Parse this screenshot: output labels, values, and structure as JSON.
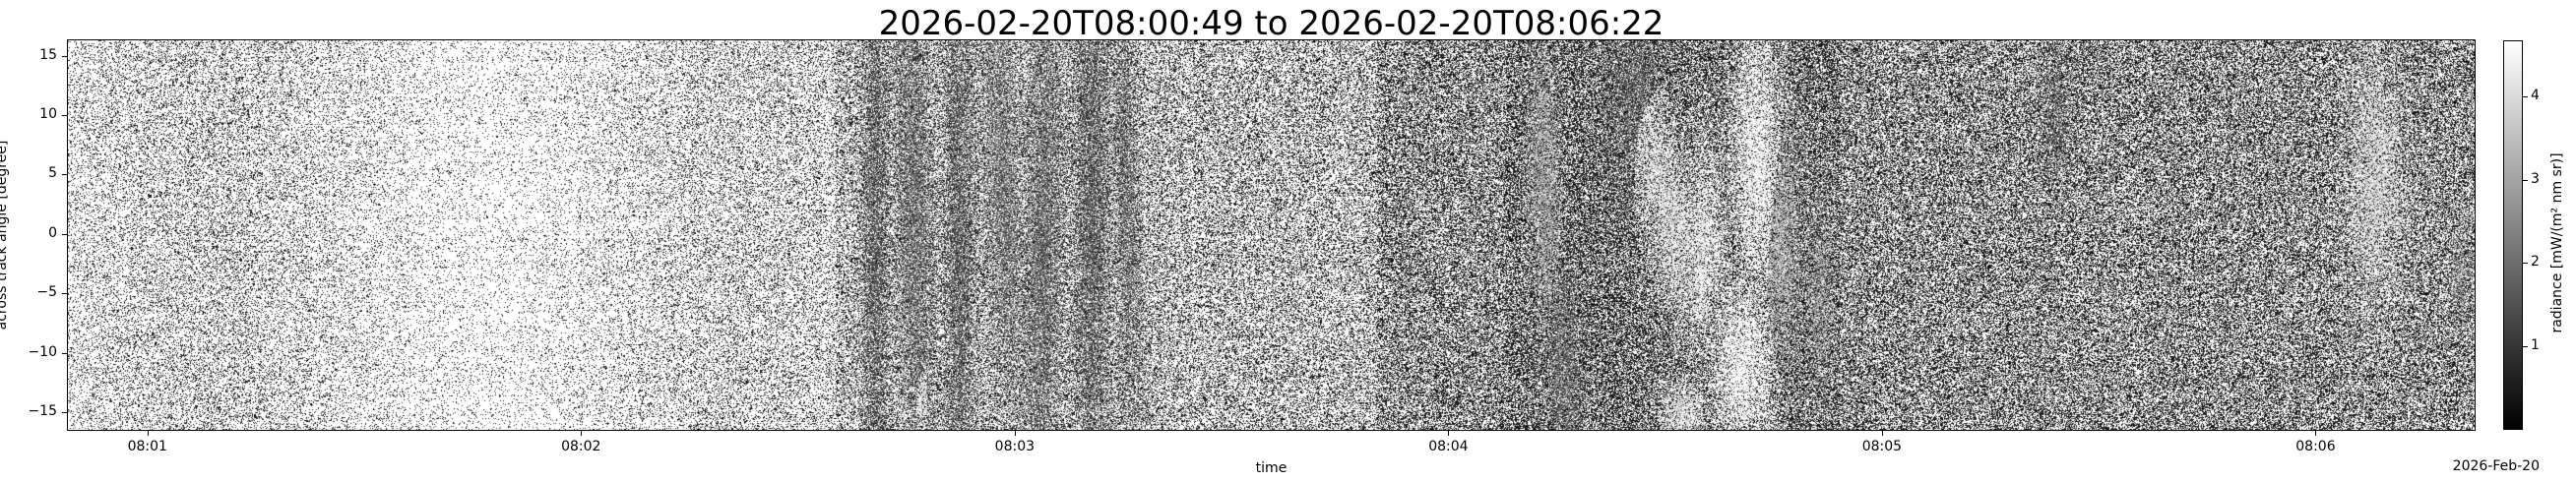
{
  "chart_data": {
    "type": "heatmap",
    "title": "2026-02-20T08:00:49 to 2026-02-20T08:06:22",
    "xlabel": "time",
    "ylabel": "across track angle [degree]",
    "x_range": [
      "08:00:49",
      "08:06:22"
    ],
    "x_ticks": [
      "08:01",
      "08:02",
      "08:03",
      "08:04",
      "08:05",
      "08:06"
    ],
    "x_offset_label": "2026-Feb-20",
    "ylim": [
      -16.5,
      16.3
    ],
    "y_ticks": [
      15,
      10,
      5,
      0,
      -5,
      -10,
      -15
    ],
    "y_tick_labels": [
      "15",
      "10",
      "5",
      "0",
      "−5",
      "−10",
      "−15"
    ],
    "colormap": "gray",
    "colorbar": {
      "label": "radiance [mW/(m² nm sr)]",
      "range": [
        0,
        4.67
      ],
      "ticks": [
        1,
        2,
        3,
        4
      ],
      "tick_labels": [
        "1",
        "2",
        "3",
        "4"
      ]
    },
    "grid": false
  }
}
